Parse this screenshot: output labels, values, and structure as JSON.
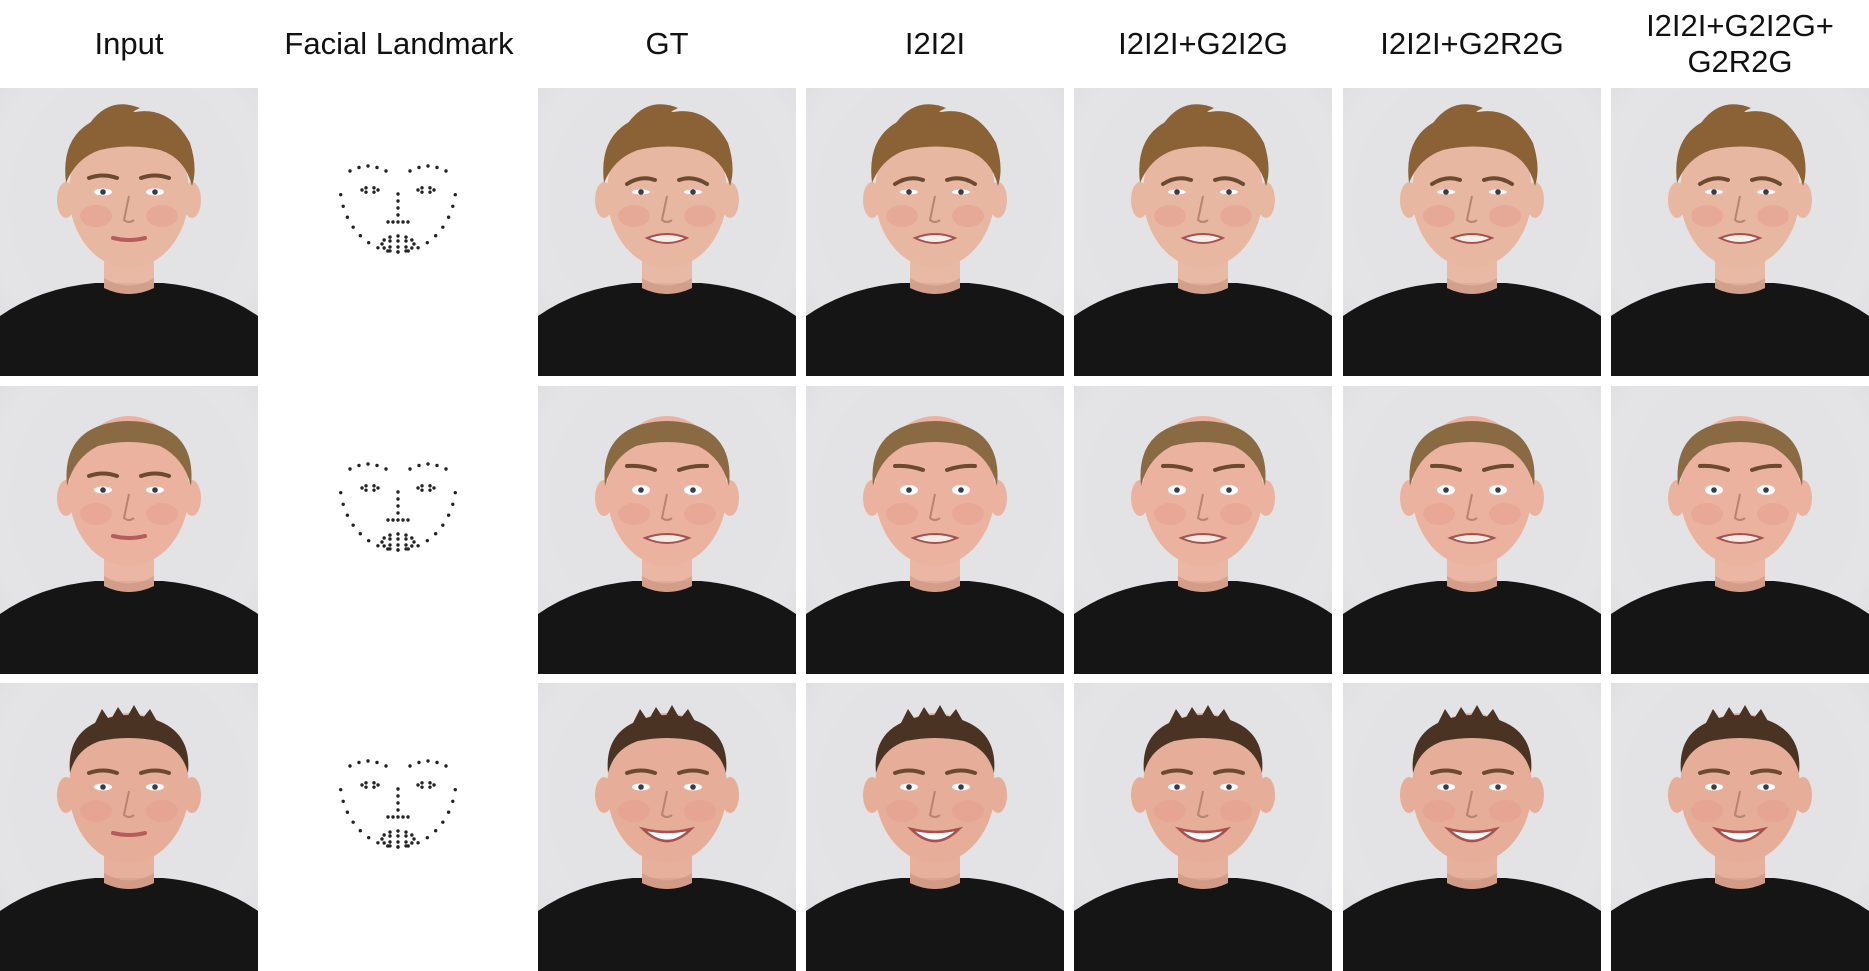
{
  "columns": [
    {
      "label": "Input"
    },
    {
      "label": "Facial Landmark"
    },
    {
      "label": "GT"
    },
    {
      "label": "I2I2I"
    },
    {
      "label": "I2I2I+G2I2G"
    },
    {
      "label": "I2I2I+G2R2G"
    },
    {
      "label": "I2I2I+G2I2G+\nG2R2G"
    }
  ],
  "rows": [
    {
      "hair": "#8a6235",
      "hair_style": "messy",
      "skin": "#e8b7a2",
      "expressions": [
        "neutral",
        "landmark",
        "disgust",
        "disgust",
        "disgust",
        "disgust",
        "disgust"
      ]
    },
    {
      "hair": "#8a6a42",
      "hair_style": "pulled",
      "skin": "#ebb39f",
      "expressions": [
        "neutral",
        "landmark",
        "fear",
        "fear",
        "fear",
        "fear",
        "fear"
      ]
    },
    {
      "hair": "#4a3322",
      "hair_style": "short",
      "skin": "#e6ad99",
      "expressions": [
        "neutral",
        "landmark",
        "happy",
        "happy",
        "happy",
        "happy",
        "happy"
      ]
    }
  ],
  "colors": {
    "background_photo": "#e3e3e6",
    "shirt": "#151515",
    "landmark_dot": "#222222"
  }
}
